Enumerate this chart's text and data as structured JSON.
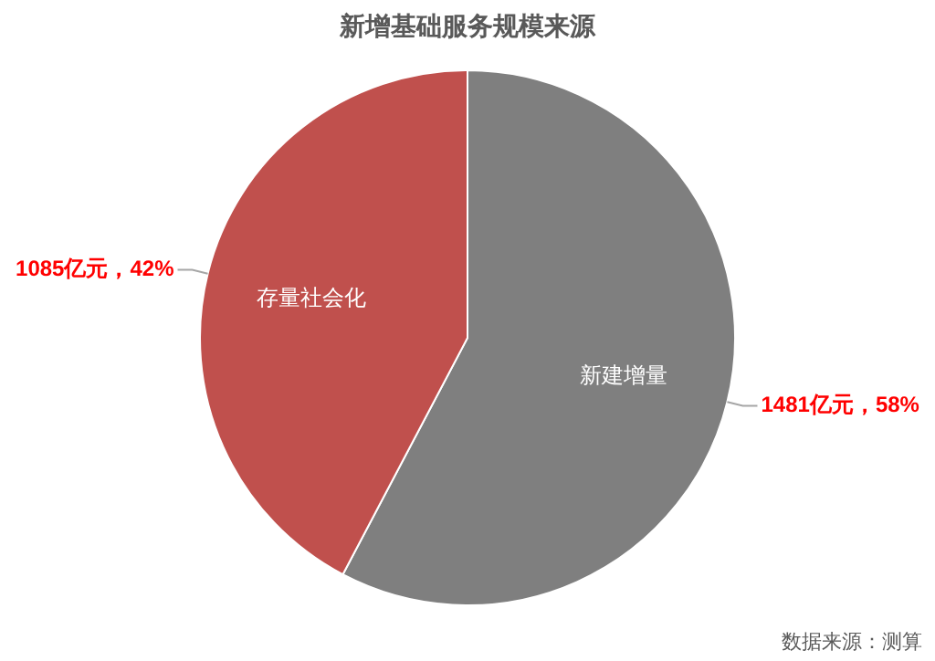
{
  "chart_data": {
    "type": "pie",
    "title": "新增基础服务规模来源",
    "categories": [
      "新建增量",
      "存量社会化"
    ],
    "values": [
      1481,
      1085
    ],
    "colors": [
      "#7f7f7f",
      "#c0504d"
    ],
    "value_labels": [
      "1481亿元，58%",
      "1085亿元，42%"
    ],
    "annotations": [
      "数据来源：测算"
    ],
    "legend": false
  }
}
